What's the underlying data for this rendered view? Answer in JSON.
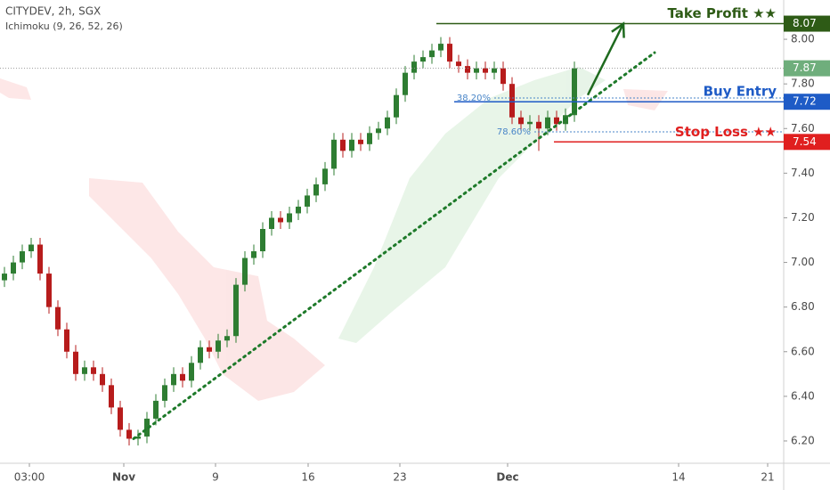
{
  "chart_data": {
    "type": "candlestick",
    "title": "CITYDEV, 2h, SGX",
    "subtitle": "Ichimoku (9, 26, 52, 26)",
    "up_color": "#2e7d32",
    "down_color": "#b71c1c",
    "candles": [
      [
        6.92,
        6.98,
        6.89,
        6.95
      ],
      [
        6.95,
        7.03,
        6.92,
        7.0
      ],
      [
        7.0,
        7.08,
        6.97,
        7.05
      ],
      [
        7.05,
        7.11,
        7.02,
        7.08
      ],
      [
        7.08,
        7.11,
        6.92,
        6.95
      ],
      [
        6.95,
        6.98,
        6.77,
        6.8
      ],
      [
        6.8,
        6.83,
        6.67,
        6.7
      ],
      [
        6.7,
        6.73,
        6.57,
        6.6
      ],
      [
        6.6,
        6.63,
        6.47,
        6.5
      ],
      [
        6.5,
        6.56,
        6.47,
        6.53
      ],
      [
        6.53,
        6.56,
        6.47,
        6.5
      ],
      [
        6.5,
        6.53,
        6.42,
        6.45
      ],
      [
        6.45,
        6.48,
        6.32,
        6.35
      ],
      [
        6.35,
        6.38,
        6.22,
        6.25
      ],
      [
        6.25,
        6.28,
        6.18,
        6.21
      ],
      [
        6.21,
        6.25,
        6.18,
        6.22
      ],
      [
        6.22,
        6.33,
        6.19,
        6.3
      ],
      [
        6.3,
        6.41,
        6.27,
        6.38
      ],
      [
        6.38,
        6.48,
        6.35,
        6.45
      ],
      [
        6.45,
        6.53,
        6.42,
        6.5
      ],
      [
        6.5,
        6.53,
        6.44,
        6.47
      ],
      [
        6.47,
        6.58,
        6.44,
        6.55
      ],
      [
        6.55,
        6.65,
        6.52,
        6.62
      ],
      [
        6.62,
        6.65,
        6.57,
        6.6
      ],
      [
        6.6,
        6.68,
        6.57,
        6.65
      ],
      [
        6.65,
        6.7,
        6.62,
        6.67
      ],
      [
        6.67,
        6.93,
        6.64,
        6.9
      ],
      [
        6.9,
        7.05,
        6.87,
        7.02
      ],
      [
        7.02,
        7.08,
        6.99,
        7.05
      ],
      [
        7.05,
        7.18,
        7.02,
        7.15
      ],
      [
        7.15,
        7.23,
        7.12,
        7.2
      ],
      [
        7.2,
        7.23,
        7.15,
        7.18
      ],
      [
        7.18,
        7.25,
        7.15,
        7.22
      ],
      [
        7.22,
        7.28,
        7.19,
        7.25
      ],
      [
        7.25,
        7.33,
        7.22,
        7.3
      ],
      [
        7.3,
        7.38,
        7.27,
        7.35
      ],
      [
        7.35,
        7.45,
        7.32,
        7.42
      ],
      [
        7.42,
        7.58,
        7.39,
        7.55
      ],
      [
        7.55,
        7.58,
        7.47,
        7.5
      ],
      [
        7.5,
        7.58,
        7.47,
        7.55
      ],
      [
        7.55,
        7.58,
        7.5,
        7.53
      ],
      [
        7.53,
        7.61,
        7.5,
        7.58
      ],
      [
        7.58,
        7.63,
        7.55,
        7.6
      ],
      [
        7.6,
        7.68,
        7.57,
        7.65
      ],
      [
        7.65,
        7.78,
        7.62,
        7.75
      ],
      [
        7.75,
        7.88,
        7.72,
        7.85
      ],
      [
        7.85,
        7.93,
        7.82,
        7.9
      ],
      [
        7.9,
        7.95,
        7.87,
        7.92
      ],
      [
        7.92,
        7.98,
        7.89,
        7.95
      ],
      [
        7.95,
        8.01,
        7.92,
        7.98
      ],
      [
        7.98,
        8.01,
        7.87,
        7.9
      ],
      [
        7.9,
        7.93,
        7.85,
        7.88
      ],
      [
        7.88,
        7.91,
        7.82,
        7.85
      ],
      [
        7.85,
        7.9,
        7.82,
        7.87
      ],
      [
        7.87,
        7.9,
        7.82,
        7.85
      ],
      [
        7.85,
        7.9,
        7.82,
        7.87
      ],
      [
        7.87,
        7.9,
        7.77,
        7.8
      ],
      [
        7.8,
        7.83,
        7.62,
        7.65
      ],
      [
        7.65,
        7.68,
        7.59,
        7.62
      ],
      [
        7.62,
        7.66,
        7.59,
        7.63
      ],
      [
        7.63,
        7.66,
        7.5,
        7.6
      ],
      [
        7.6,
        7.68,
        7.57,
        7.65
      ],
      [
        7.65,
        7.68,
        7.59,
        7.62
      ],
      [
        7.62,
        7.69,
        7.59,
        7.66
      ],
      [
        7.66,
        7.9,
        7.63,
        7.87
      ]
    ],
    "xlim": [
      -0.5,
      87.5
    ],
    "xticks": [
      {
        "value": 2.8,
        "label": "03:00"
      },
      {
        "value": 13.4,
        "label": "Nov"
      },
      {
        "value": 23.7,
        "label": "9"
      },
      {
        "value": 34.1,
        "label": "16"
      },
      {
        "value": 44.4,
        "label": "23"
      },
      {
        "value": 56.5,
        "label": "Dec"
      },
      {
        "value": 75.7,
        "label": "14"
      },
      {
        "value": 85.7,
        "label": "21"
      }
    ],
    "ylim": [
      6.1,
      8.176
    ],
    "yticks": [
      {
        "value": 6.2,
        "label": "6.20"
      },
      {
        "value": 6.4,
        "label": "6.40"
      },
      {
        "value": 6.6,
        "label": "6.60"
      },
      {
        "value": 6.8,
        "label": "6.80"
      },
      {
        "value": 7.0,
        "label": "7.00"
      },
      {
        "value": 7.2,
        "label": "7.20"
      },
      {
        "value": 7.4,
        "label": "7.40"
      },
      {
        "value": 7.6,
        "label": "7.60"
      },
      {
        "value": 7.8,
        "label": "7.80"
      },
      {
        "value": 8.0,
        "label": "8.00"
      }
    ],
    "last_price": 7.87,
    "last_color": "#6fae7c",
    "levels": [
      {
        "name": "Take Profit ★★",
        "value": 8.07,
        "color": "#2e5b16",
        "x_start": 48.5
      },
      {
        "name": "Buy Entry",
        "value": 7.72,
        "color": "#1e5bc6",
        "x_start": 50.5
      },
      {
        "name": "Stop Loss ★★",
        "value": 7.54,
        "color": "#e01f1f",
        "x_start": 61.7
      }
    ],
    "fib_levels": [
      {
        "label": "38.20%",
        "value": 7.737,
        "x_start": 55
      },
      {
        "label": "78.60%",
        "value": 7.585,
        "x_start": 59.5
      }
    ],
    "trendline": [
      [
        14.5,
        6.21
      ],
      [
        73,
        7.94
      ]
    ],
    "arrow": [
      [
        65.5,
        7.75
      ],
      [
        69.5,
        8.07
      ]
    ]
  }
}
